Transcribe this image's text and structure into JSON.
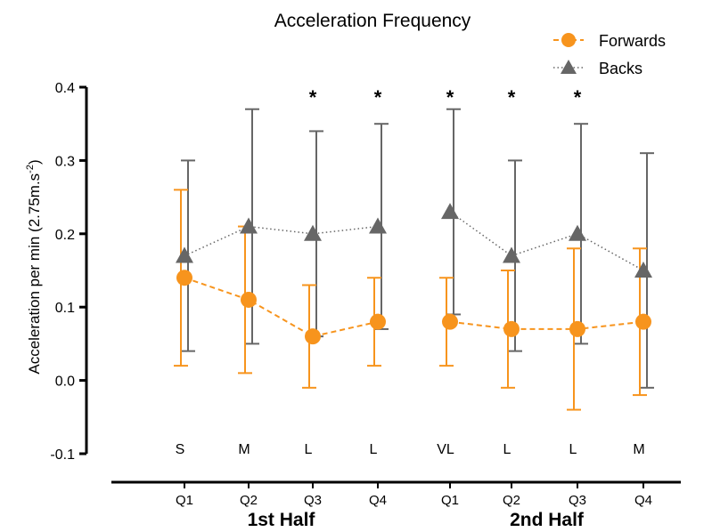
{
  "chart_data": {
    "type": "line",
    "title": "Acceleration Frequency",
    "ylabel": "Acceleration per min (2.75m.s",
    "ylabel_sup": "-2",
    "ylabel_suffix": ")",
    "xlabel": "",
    "ylim": [
      -0.1,
      0.4
    ],
    "yticks": [
      "-0.1",
      "0.0",
      "0.1",
      "0.2",
      "0.3",
      "0.4"
    ],
    "ytick_values": [
      -0.1,
      0.0,
      0.1,
      0.2,
      0.3,
      0.4
    ],
    "grid": false,
    "legend_position": "top-right",
    "groups": [
      {
        "label": "1st Half",
        "categories": [
          "Q1",
          "Q2",
          "Q3",
          "Q4"
        ]
      },
      {
        "label": "2nd Half",
        "categories": [
          "Q1",
          "Q2",
          "Q3",
          "Q4"
        ]
      }
    ],
    "effect_sizes": [
      "S",
      "M",
      "L",
      "L",
      "VL",
      "L",
      "L",
      "M"
    ],
    "significant": [
      false,
      false,
      true,
      true,
      true,
      true,
      true,
      false
    ],
    "significance_symbol": "*",
    "series": [
      {
        "name": "Forwards",
        "color": "#F7941D",
        "marker": "circle",
        "line_style": "dashed",
        "values": [
          0.14,
          0.11,
          0.06,
          0.08,
          0.08,
          0.07,
          0.07,
          0.08
        ],
        "upper": [
          0.26,
          0.21,
          0.13,
          0.14,
          0.14,
          0.15,
          0.18,
          0.18
        ],
        "lower": [
          0.02,
          0.01,
          -0.01,
          0.02,
          0.02,
          -0.01,
          -0.04,
          -0.02
        ]
      },
      {
        "name": "Backs",
        "color": "#666666",
        "marker": "triangle",
        "line_style": "dotted",
        "values": [
          0.17,
          0.21,
          0.2,
          0.21,
          0.23,
          0.17,
          0.2,
          0.15
        ],
        "upper": [
          0.3,
          0.37,
          0.34,
          0.35,
          0.37,
          0.3,
          0.35,
          0.31
        ],
        "lower": [
          0.04,
          0.05,
          0.06,
          0.07,
          0.09,
          0.04,
          0.05,
          -0.01
        ]
      }
    ]
  }
}
